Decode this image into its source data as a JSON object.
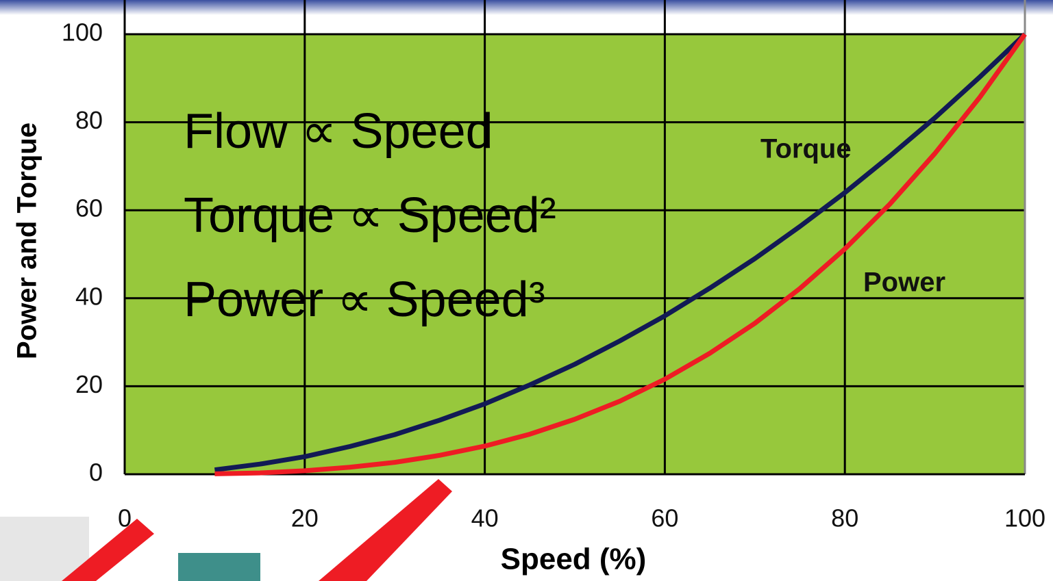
{
  "chart_data": {
    "type": "line",
    "xlabel": "Speed (%)",
    "ylabel": "Power and Torque",
    "annotations": [
      "Flow ∝ Speed",
      "Torque ∝ Speed²",
      "Power ∝ Speed³"
    ],
    "x": [
      10,
      15,
      20,
      25,
      30,
      35,
      40,
      45,
      50,
      55,
      60,
      65,
      70,
      75,
      80,
      85,
      90,
      95,
      100
    ],
    "series": [
      {
        "name": "Torque",
        "color": "#121a55",
        "values": [
          1,
          2.3,
          4,
          6.3,
          9,
          12.3,
          16,
          20.3,
          25,
          30.3,
          36,
          42.3,
          49,
          56.3,
          64,
          72.3,
          81,
          90.3,
          100
        ]
      },
      {
        "name": "Power",
        "color": "#ee1c24",
        "values": [
          0.1,
          0.3,
          0.8,
          1.6,
          2.7,
          4.3,
          6.4,
          9.1,
          12.5,
          16.6,
          21.6,
          27.5,
          34.3,
          42.2,
          51.2,
          61.4,
          72.9,
          85.7,
          100
        ]
      }
    ],
    "xlim": [
      0,
      100
    ],
    "xticks": [
      0,
      20,
      40,
      60,
      80,
      100
    ],
    "ylim": [
      0,
      100
    ],
    "yticks": [
      0,
      20,
      40,
      60,
      80,
      100
    ],
    "grid": true,
    "plot_background": "#97c83c"
  }
}
